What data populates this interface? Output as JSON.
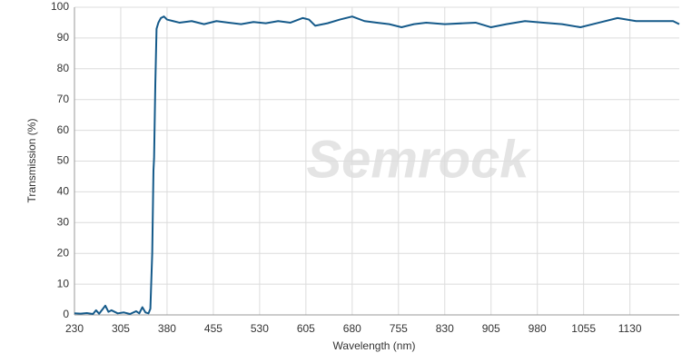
{
  "chart_data": {
    "type": "line",
    "watermark": "Semrock",
    "x_label": "Wavelength (nm)",
    "y_label": "Transmission (%)",
    "x": [
      230,
      240,
      250,
      260,
      265,
      270,
      280,
      285,
      290,
      300,
      310,
      320,
      330,
      335,
      340,
      345,
      350,
      353,
      356,
      358,
      359,
      361,
      363,
      366,
      370,
      375,
      380,
      390,
      400,
      420,
      440,
      460,
      480,
      500,
      520,
      540,
      560,
      580,
      600,
      610,
      620,
      640,
      660,
      680,
      700,
      720,
      740,
      760,
      780,
      800,
      830,
      860,
      880,
      905,
      930,
      960,
      990,
      1020,
      1050,
      1080,
      1110,
      1140,
      1170,
      1200,
      1210
    ],
    "values": [
      0.5,
      0.4,
      0.6,
      0.3,
      1.5,
      0.4,
      3,
      1,
      1.5,
      0.5,
      0.8,
      0.3,
      1.2,
      0.5,
      2.5,
      0.8,
      0.5,
      2,
      20,
      47,
      51,
      75,
      93,
      95,
      96.5,
      97,
      96,
      95.5,
      95,
      95.5,
      94.5,
      95.5,
      95,
      94.5,
      95.2,
      94.8,
      95.5,
      95,
      96.5,
      96,
      94,
      94.8,
      96,
      97,
      95.5,
      95,
      94.5,
      93.5,
      94.5,
      95,
      94.5,
      94.8,
      95,
      93.5,
      94.5,
      95.5,
      95,
      94.5,
      93.5,
      95,
      96.5,
      95.5,
      95.5,
      95.5,
      94.5
    ],
    "color": "#155a8a",
    "xlim": [
      230,
      1210
    ],
    "ylim": [
      0,
      100
    ],
    "xticks": [
      230,
      305,
      380,
      455,
      530,
      605,
      680,
      755,
      830,
      905,
      980,
      1055,
      1130
    ],
    "yticks": [
      0,
      10,
      20,
      30,
      40,
      50,
      60,
      70,
      80,
      90,
      100
    ],
    "grid": true
  }
}
